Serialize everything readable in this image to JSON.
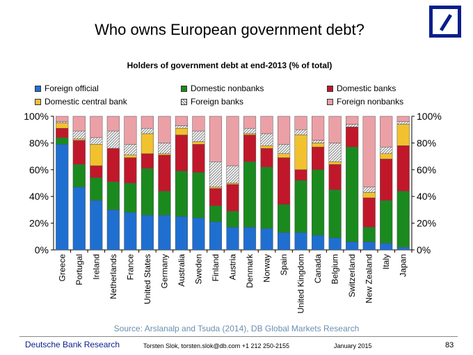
{
  "page": {
    "title": "Who owns European government debt?",
    "source": "Source: Arslanalp and Tsuda (2014), DB Global Markets Research",
    "footer_left": "Deutsche Bank Research",
    "footer_contact": "Torsten Slok, torsten.slok@db.com +1 212 250-2155",
    "footer_date": "January 2015",
    "page_number": "83",
    "logo_icon": "deutsche-bank-logo"
  },
  "chart_data": {
    "type": "bar",
    "stacked": true,
    "title": "Holders of government debt at end-2013 (% of total)",
    "ylim": [
      0,
      100
    ],
    "y_ticks": [
      "0%",
      "20%",
      "40%",
      "60%",
      "80%",
      "100%"
    ],
    "grid": false,
    "legend_position": "top",
    "categories": [
      "Greece",
      "Portugal",
      "Ireland",
      "Netherlands",
      "France",
      "United States",
      "Germany",
      "Australia",
      "Sweden",
      "Finland",
      "Austria",
      "Denmark",
      "Norway",
      "Spain",
      "United Kingdom",
      "Canada",
      "Belgium",
      "Switzerland",
      "New Zealand",
      "Italy",
      "Japan"
    ],
    "series": [
      {
        "name": "Foreign official",
        "color": "#1f6fd1",
        "values": [
          79,
          47,
          37,
          30,
          28,
          26,
          26,
          25,
          24,
          21,
          17,
          17,
          16,
          13,
          13,
          11,
          9,
          6,
          6,
          5,
          2
        ]
      },
      {
        "name": "Domestic nonbanks",
        "color": "#1a8a1f",
        "values": [
          5,
          17,
          17,
          21,
          22,
          35,
          18,
          34,
          34,
          12,
          12,
          49,
          46,
          21,
          39,
          49,
          36,
          71,
          11,
          32,
          42
        ]
      },
      {
        "name": "Domestic banks",
        "color": "#c0182a",
        "values": [
          7,
          18,
          9,
          25,
          19,
          11,
          27,
          27,
          21,
          13,
          20,
          20,
          14,
          35,
          8,
          17,
          19,
          15,
          22,
          31,
          34
        ]
      },
      {
        "name": "Domestic central bank",
        "color": "#f2c12e",
        "values": [
          4,
          1,
          16,
          0,
          2,
          15,
          1,
          5,
          2,
          1,
          1,
          1,
          2,
          3,
          26,
          3,
          2,
          0,
          4,
          4,
          16
        ]
      },
      {
        "name": "Foreign banks",
        "color": "#f0f0f0",
        "pattern": "hatched",
        "values": [
          1,
          6,
          5,
          13,
          8,
          4,
          8,
          2,
          8,
          19,
          13,
          4,
          9,
          7,
          4,
          2,
          14,
          2,
          4,
          5,
          2
        ]
      },
      {
        "name": "Foreign nonbanks",
        "color": "#eba0a6",
        "values": [
          4,
          11,
          16,
          11,
          21,
          9,
          20,
          7,
          11,
          34,
          37,
          9,
          13,
          21,
          10,
          18,
          20,
          6,
          53,
          23,
          4
        ]
      }
    ]
  }
}
